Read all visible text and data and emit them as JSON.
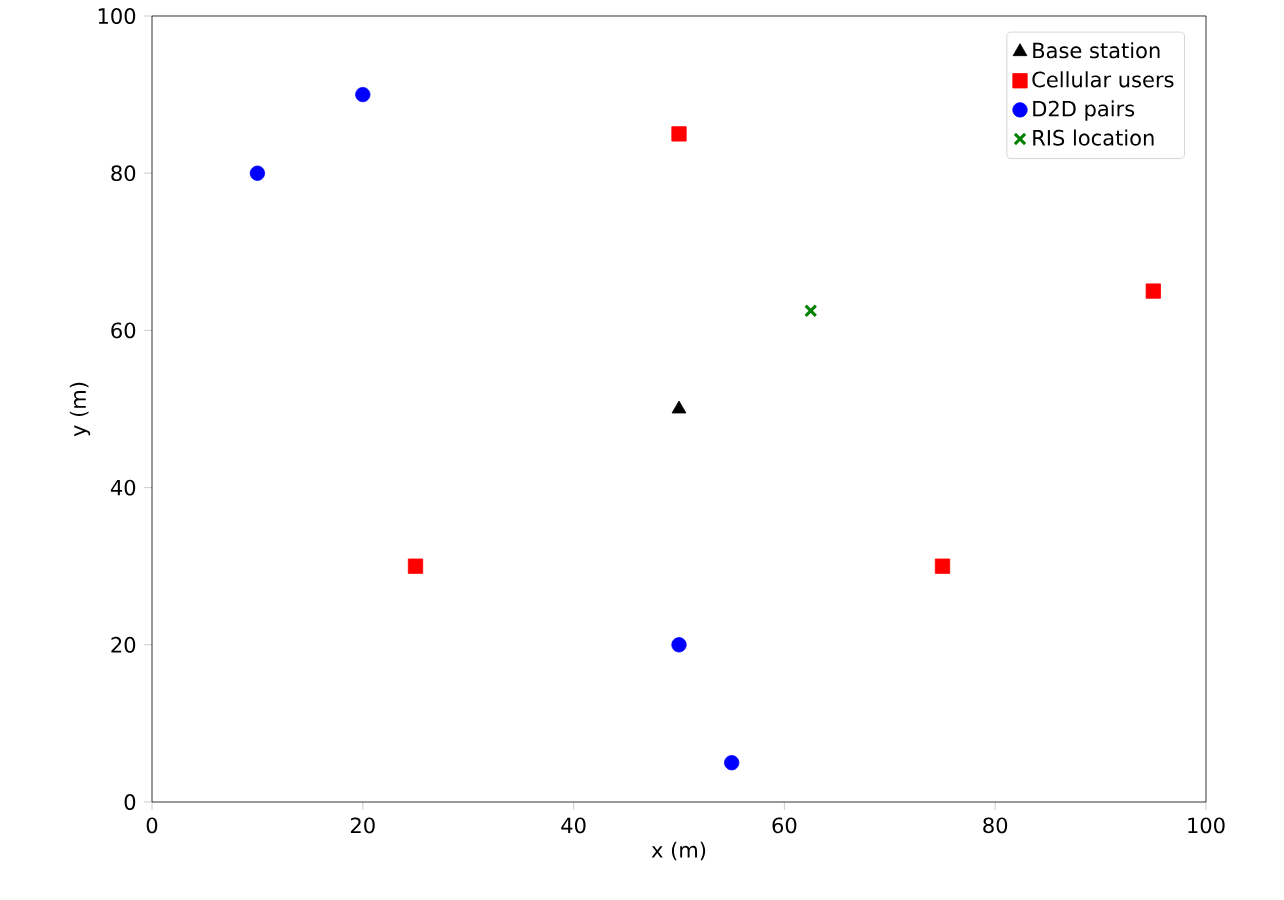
{
  "chart_data": {
    "type": "scatter",
    "xlabel": "x (m)",
    "ylabel": "y (m)",
    "xlim": [
      0,
      100
    ],
    "ylim": [
      0,
      100
    ],
    "xticks": [
      0,
      20,
      40,
      60,
      80,
      100
    ],
    "yticks": [
      0,
      20,
      40,
      60,
      80,
      100
    ],
    "legend": "top right",
    "grid": false,
    "series": [
      {
        "name": "Base station",
        "color": "#000000",
        "marker": "triangle",
        "x": [
          50
        ],
        "values": [
          50
        ]
      },
      {
        "name": "Cellular users",
        "color": "#ff0000",
        "marker": "square",
        "x": [
          50,
          25,
          75,
          95
        ],
        "values": [
          85,
          30,
          30,
          65
        ]
      },
      {
        "name": "D2D pairs",
        "color": "#0000ff",
        "marker": "circle",
        "x": [
          10,
          20,
          50,
          55
        ],
        "values": [
          80,
          90,
          20,
          5
        ]
      },
      {
        "name": "RIS location",
        "color": "#008000",
        "marker": "cross",
        "x": [
          62.5
        ],
        "values": [
          62.5
        ]
      }
    ]
  }
}
